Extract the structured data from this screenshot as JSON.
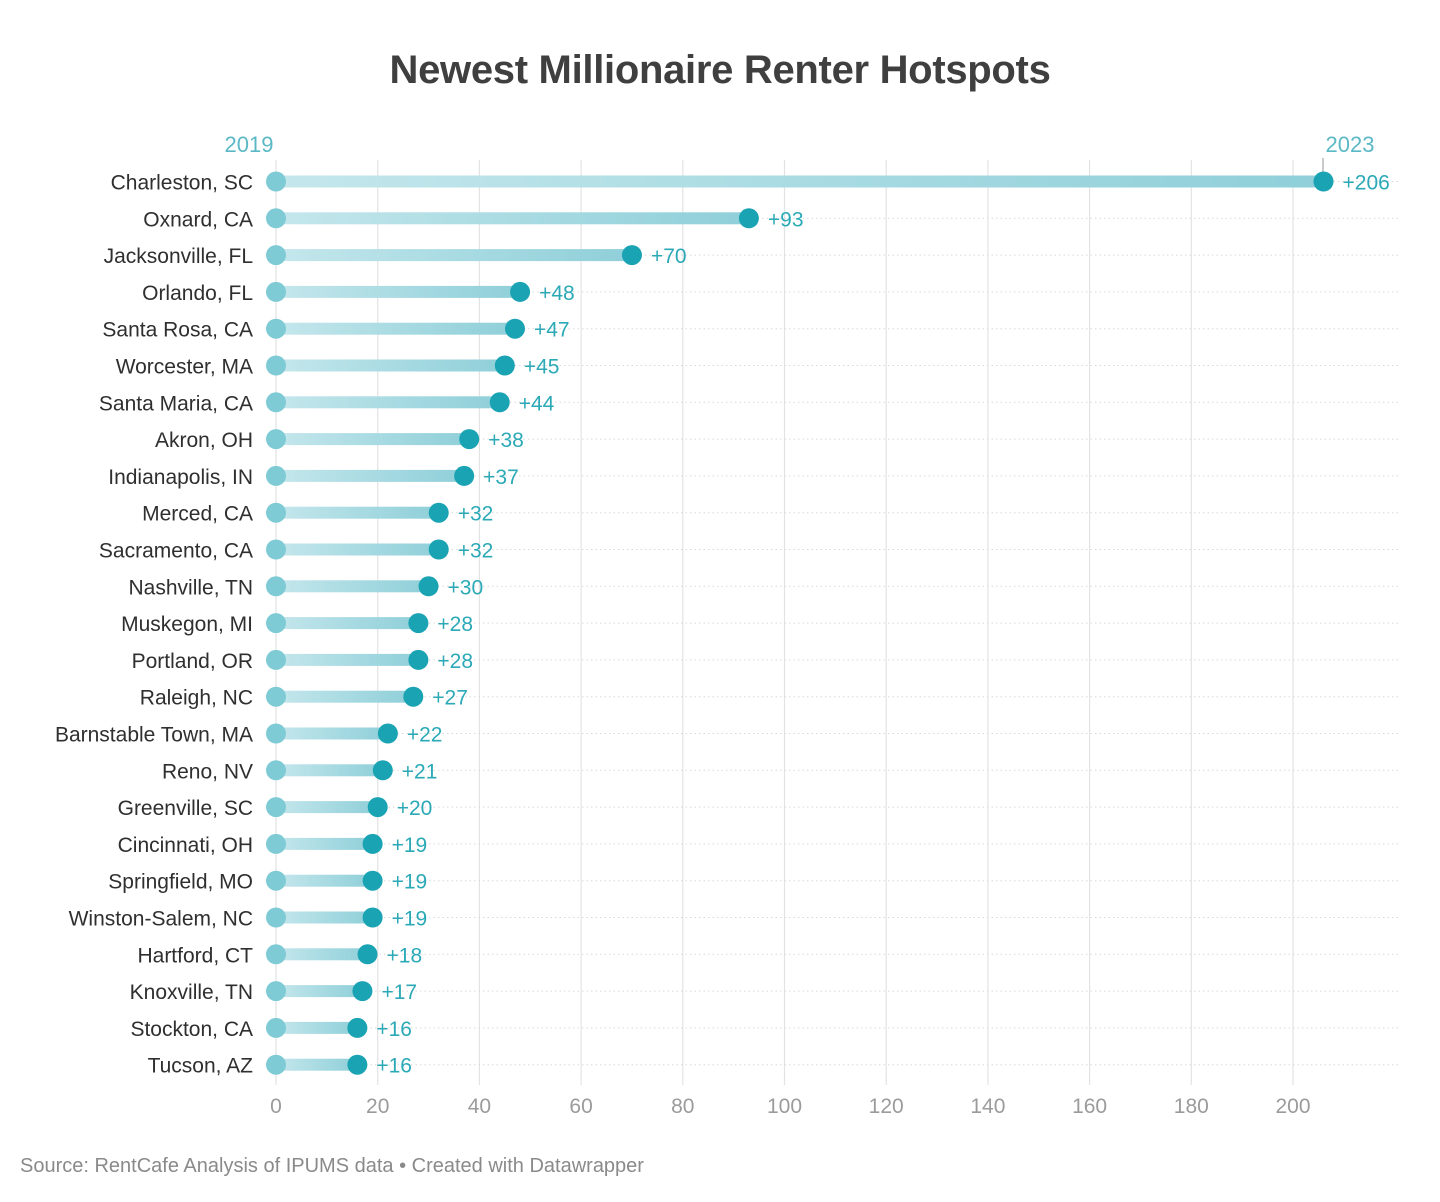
{
  "title": "Newest Millionaire Renter Hotspots",
  "source": "Source: RentCafe Analysis of IPUMS data • Created with Datawrapper",
  "colors": {
    "start_dot": "#7fcbd5",
    "end_dot": "#1aa3b3",
    "bar": "#a8dbe2",
    "value_label": "#2ba9b7",
    "year_label": "#5bb9c5",
    "grid": "#e3e3e3",
    "tick": "#9b9b9b",
    "category": "#2f2f2f"
  },
  "chart_data": {
    "type": "dot-range",
    "start_label": "2019",
    "end_label": "2023",
    "categories": [
      "Charleston, SC",
      "Oxnard, CA",
      "Jacksonville, FL",
      "Orlando, FL",
      "Santa Rosa, CA",
      "Worcester, MA",
      "Santa Maria, CA",
      "Akron, OH",
      "Indianapolis, IN",
      "Merced, CA",
      "Sacramento, CA",
      "Nashville, TN",
      "Muskegon, MI",
      "Portland, OR",
      "Raleigh, NC",
      "Barnstable Town, MA",
      "Reno, NV",
      "Greenville, SC",
      "Cincinnati, OH",
      "Springfield, MO",
      "Winston-Salem, NC",
      "Hartford, CT",
      "Knoxville, TN",
      "Stockton, CA",
      "Tucson, AZ"
    ],
    "series": [
      {
        "name": "2019",
        "values": [
          0,
          0,
          0,
          0,
          0,
          0,
          0,
          0,
          0,
          0,
          0,
          0,
          0,
          0,
          0,
          0,
          0,
          0,
          0,
          0,
          0,
          0,
          0,
          0,
          0
        ]
      },
      {
        "name": "2023",
        "values": [
          206,
          93,
          70,
          48,
          47,
          45,
          44,
          38,
          37,
          32,
          32,
          30,
          28,
          28,
          27,
          22,
          21,
          20,
          19,
          19,
          19,
          18,
          17,
          16,
          16
        ]
      }
    ],
    "value_labels": [
      "+206",
      "+93",
      "+70",
      "+48",
      "+47",
      "+45",
      "+44",
      "+38",
      "+37",
      "+32",
      "+32",
      "+30",
      "+28",
      "+28",
      "+27",
      "+22",
      "+21",
      "+20",
      "+19",
      "+19",
      "+19",
      "+18",
      "+17",
      "+16",
      "+16"
    ],
    "x_ticks": [
      0,
      20,
      40,
      60,
      80,
      100,
      120,
      140,
      160,
      180,
      200
    ],
    "xlim": [
      0,
      220
    ],
    "grid": true
  }
}
